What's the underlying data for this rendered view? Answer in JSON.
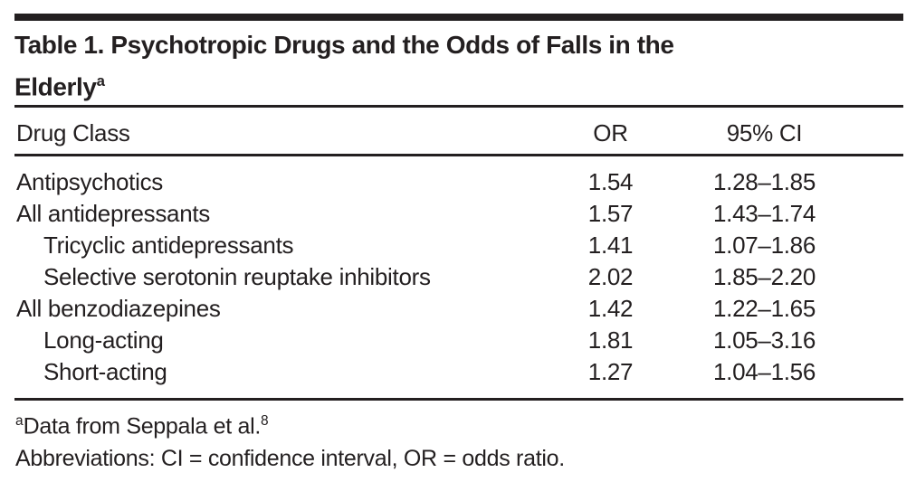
{
  "page": {
    "background_color": "#ffffff",
    "ink_color": "#231f20"
  },
  "table_figure": {
    "title": {
      "line1": "Table 1. Psychotropic Drugs and the Odds of Falls in the",
      "line2": "Elderly",
      "superscript": "a"
    },
    "columns": {
      "drug": "Drug Class",
      "or": "OR",
      "ci": "95% CI"
    },
    "rows": [
      {
        "drug": "Antipsychotics",
        "or": "1.54",
        "ci": "1.28–1.85"
      },
      {
        "drug": "All antidepressants",
        "or": "1.57",
        "ci": "1.43–1.74"
      },
      {
        "drug": "Tricyclic antidepressants",
        "or": "1.41",
        "ci": "1.07–1.86"
      },
      {
        "drug": "Selective serotonin reuptake inhibitors",
        "or": "2.02",
        "ci": "1.85–2.20"
      },
      {
        "drug": "All benzodiazepines",
        "or": "1.42",
        "ci": "1.22–1.65"
      },
      {
        "drug": "Long-acting",
        "or": "1.81",
        "ci": "1.05–3.16"
      },
      {
        "drug": "Short-acting",
        "or": "1.27",
        "ci": "1.04–1.56"
      }
    ],
    "footnotes": {
      "source": {
        "marker": "a",
        "text": "Data from Seppala et al.",
        "reference": "8"
      },
      "abbreviations": "Abbreviations: CI = confidence interval, OR = odds ratio."
    }
  }
}
